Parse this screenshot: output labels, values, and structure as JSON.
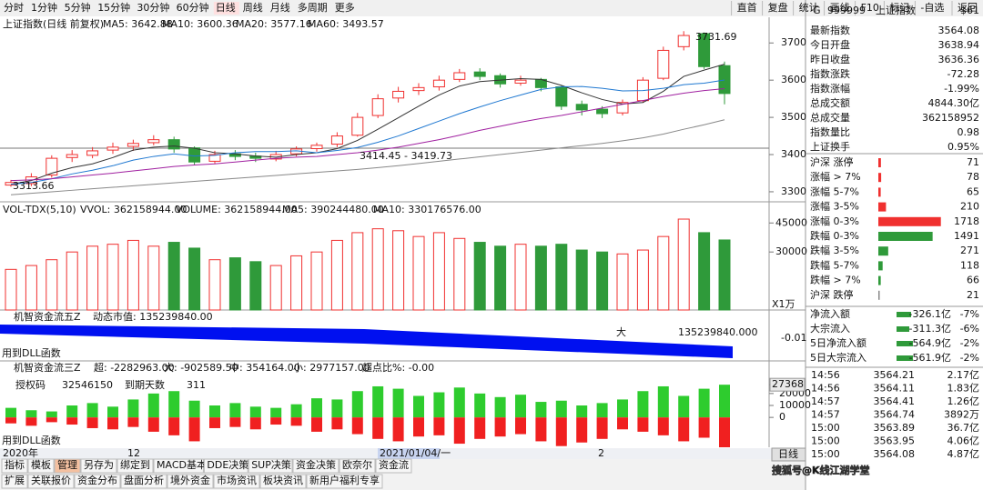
{
  "toolbar": {
    "left": [
      "分时",
      "1分钟",
      "5分钟",
      "15分钟",
      "30分钟",
      "60分钟",
      "日线",
      "周线",
      "月线",
      "多周期",
      "更多"
    ],
    "right": [
      "直首",
      "复盘",
      "统计",
      "画线",
      "F10",
      "标记",
      "-自选",
      "返回"
    ]
  },
  "chart_data": [
    {
      "type": "candlestick",
      "title": "上证指数(日线 前复权)",
      "ohlc": [
        [
          3318,
          3332,
          3313.66,
          3325
        ],
        [
          3322,
          3350,
          3315,
          3340
        ],
        [
          3345,
          3398,
          3338,
          3390
        ],
        [
          3392,
          3412,
          3380,
          3400
        ],
        [
          3398,
          3420,
          3390,
          3410
        ],
        [
          3412,
          3432,
          3402,
          3420
        ],
        [
          3422,
          3440,
          3410,
          3430
        ],
        [
          3432,
          3452,
          3425,
          3440
        ],
        [
          3440,
          3448,
          3405,
          3415
        ],
        [
          3418,
          3422,
          3372,
          3380
        ],
        [
          3382,
          3410,
          3375,
          3400
        ],
        [
          3402,
          3412,
          3385,
          3395
        ],
        [
          3396,
          3405,
          3380,
          3390
        ],
        [
          3388,
          3410,
          3382,
          3400
        ],
        [
          3402,
          3422,
          3395,
          3415
        ],
        [
          3416,
          3432,
          3408,
          3425
        ],
        [
          3428,
          3460,
          3420,
          3450
        ],
        [
          3452,
          3512,
          3448,
          3500
        ],
        [
          3505,
          3562,
          3498,
          3550
        ],
        [
          3552,
          3582,
          3540,
          3570
        ],
        [
          3572,
          3592,
          3560,
          3580
        ],
        [
          3582,
          3612,
          3572,
          3600
        ],
        [
          3602,
          3630,
          3595,
          3620
        ],
        [
          3622,
          3632,
          3600,
          3610
        ],
        [
          3612,
          3618,
          3580,
          3590
        ],
        [
          3592,
          3612,
          3585,
          3600
        ],
        [
          3602,
          3606,
          3570,
          3580
        ],
        [
          3582,
          3585,
          3520,
          3530
        ],
        [
          3535,
          3545,
          3505,
          3520
        ],
        [
          3522,
          3530,
          3498,
          3510
        ],
        [
          3512,
          3548,
          3505,
          3540
        ],
        [
          3545,
          3608,
          3540,
          3600
        ],
        [
          3605,
          3690,
          3600,
          3680
        ],
        [
          3690,
          3731.69,
          3680,
          3720
        ],
        [
          3725,
          3728,
          3630,
          3636.36
        ],
        [
          3638.94,
          3650,
          3535,
          3564.08
        ]
      ],
      "series": [
        {
          "name": "MA5: 3642.88",
          "color": "#333333",
          "values": [
            3320,
            3330,
            3350,
            3365,
            3375,
            3392,
            3412,
            3420,
            3423,
            3417,
            3405,
            3402,
            3396,
            3393,
            3400,
            3405,
            3416,
            3438,
            3468,
            3499,
            3530,
            3560,
            3584,
            3596,
            3600,
            3604,
            3602,
            3586,
            3566,
            3548,
            3536,
            3540,
            3570,
            3610,
            3627,
            3642.88
          ]
        },
        {
          "name": "MA10: 3600.36",
          "color": "#1f78d1",
          "values": [
            3320,
            3325,
            3335,
            3348,
            3358,
            3370,
            3385,
            3395,
            3402,
            3396,
            3398,
            3405,
            3408,
            3408,
            3410,
            3405,
            3411,
            3419,
            3433,
            3450,
            3470,
            3490,
            3510,
            3528,
            3545,
            3560,
            3575,
            3582,
            3583,
            3578,
            3571,
            3572,
            3578,
            3588,
            3592,
            3600.36
          ]
        },
        {
          "name": "MA20: 3577.16",
          "color": "#a020a0",
          "values": [
            3330,
            3332,
            3335,
            3340,
            3345,
            3350,
            3356,
            3362,
            3368,
            3372,
            3375,
            3380,
            3385,
            3390,
            3393,
            3395,
            3400,
            3405,
            3412,
            3420,
            3430,
            3440,
            3452,
            3465,
            3476,
            3487,
            3497,
            3505,
            3515,
            3525,
            3535,
            3545,
            3556,
            3565,
            3572,
            3577.16
          ]
        },
        {
          "name": "MA60: 3493.57",
          "color": "#888888",
          "values": [
            3292,
            3296,
            3300,
            3304,
            3308,
            3312,
            3316,
            3320,
            3324,
            3328,
            3332,
            3336,
            3340,
            3344,
            3348,
            3352,
            3356,
            3360,
            3365,
            3370,
            3376,
            3382,
            3388,
            3394,
            3400,
            3406,
            3412,
            3418,
            3424,
            3430,
            3437,
            3445,
            3455,
            3468,
            3480,
            3493.57
          ]
        }
      ],
      "ylim": [
        3273,
        3769
      ],
      "yticks": [
        3300,
        3400,
        3500,
        3600,
        3700
      ],
      "annotations": [
        "3731.69",
        "3313.66",
        "3414.45 - 3419.73"
      ]
    },
    {
      "type": "bar",
      "title": "VOL-TDX(5,10)",
      "legend": [
        "VVOL: 362158944.00",
        "VOLUME: 362158944.00",
        "MA5: 390244480.00",
        "MA10: 330176576.00"
      ],
      "values": [
        21000,
        23000,
        26000,
        30000,
        33000,
        34000,
        36000,
        33000,
        35000,
        32000,
        26000,
        27000,
        25000,
        23000,
        28000,
        30000,
        36000,
        40000,
        42000,
        41000,
        38000,
        40000,
        37000,
        35000,
        33000,
        34000,
        33000,
        34000,
        31000,
        30000,
        29000,
        31000,
        38000,
        47000,
        40000,
        36215.8944
      ],
      "ylim": [
        0,
        55000
      ],
      "yticks": [
        30000,
        45000
      ],
      "unit": "X1万"
    },
    {
      "type": "band",
      "title": "机智资金流五Z",
      "subtitle": "动态市值: 135239840.00",
      "labels": [
        "大",
        "135239840.000",
        "-0.01",
        "用到DLL函数"
      ]
    },
    {
      "type": "flow",
      "title": "机智资金流三Z",
      "legend": [
        "超: -2282963.00",
        "大: -902589.50",
        "中: 354164.00",
        "小: 2977157.00",
        "超点比%: -0.00"
      ],
      "annotations": [
        "授权码",
        "32546150",
        "到期天数",
        "311",
        "用到DLL函数"
      ],
      "series": [
        {
          "name": "流入",
          "color": "#2ecc2e",
          "values": [
            8000,
            6000,
            5000,
            10000,
            12000,
            9000,
            15000,
            20000,
            22000,
            14000,
            10000,
            12000,
            9000,
            8000,
            11000,
            16000,
            15000,
            22000,
            26000,
            24000,
            18000,
            21000,
            25000,
            20000,
            17000,
            19000,
            13000,
            14000,
            10000,
            12000,
            15000,
            22000,
            26000,
            18000,
            24000,
            27368
          ]
        },
        {
          "name": "流出",
          "color": "#f02020",
          "values": [
            -5000,
            -7000,
            -4000,
            -6000,
            -9000,
            -10000,
            -8000,
            -12000,
            -15000,
            -20000,
            -9000,
            -8000,
            -10000,
            -6000,
            -7000,
            -12000,
            -10000,
            -14000,
            -18000,
            -20000,
            -16000,
            -15000,
            -22000,
            -18000,
            -16000,
            -14000,
            -20000,
            -24000,
            -21000,
            -18000,
            -10000,
            -12000,
            -15000,
            -20000,
            -17000,
            -25000
          ]
        }
      ],
      "ylim": [
        -25000,
        45000
      ],
      "yticks": [
        0,
        10000,
        20000,
        27368
      ]
    }
  ],
  "x_labels": [
    "2020年",
    "12",
    "2021/01/04/一",
    "2"
  ],
  "period_button": "日线",
  "tabs": {
    "row1": [
      "指标",
      "模板",
      "管理",
      "另存为",
      "绑定到",
      "MACD基本",
      "DDE决策",
      "SUP决策",
      "资金决策",
      "欧奈尔",
      "资金流"
    ],
    "row2": [
      "扩展",
      "关联报价",
      "资金分布",
      "盘面分析",
      "境外资金",
      "市场资讯",
      "板块资讯",
      "新用户福利专享"
    ]
  },
  "panel": {
    "header": [
      "G",
      "999999",
      "上证指数",
      "$61"
    ],
    "quotes": [
      [
        "最新指数",
        "3564.08"
      ],
      [
        "今日开盘",
        "3638.94"
      ],
      [
        "昨日收盘",
        "3636.36"
      ],
      [
        "指数涨跌",
        "-72.28"
      ],
      [
        "指数涨幅",
        "-1.99%"
      ],
      [
        "总成交额",
        "4844.30亿"
      ],
      [
        "总成交量",
        "362158952"
      ],
      [
        "指数量比",
        "0.98"
      ],
      [
        "上证换手",
        "0.95%"
      ]
    ],
    "breadth": [
      {
        "label": "沪深 涨停",
        "value": 71
      },
      {
        "label": "涨幅 > 7%",
        "value": 78
      },
      {
        "label": "涨幅 5-7%",
        "value": 65
      },
      {
        "label": "涨幅 3-5%",
        "value": 210
      },
      {
        "label": "涨幅 0-3%",
        "value": 1718
      },
      {
        "label": "跌幅 0-3%",
        "value": 1491
      },
      {
        "label": "跌幅 3-5%",
        "value": 271
      },
      {
        "label": "跌幅 5-7%",
        "value": 118
      },
      {
        "label": "跌幅 > 7%",
        "value": 66
      },
      {
        "label": "沪深 跌停",
        "value": 21
      }
    ],
    "flows": [
      [
        "净流入额",
        "-326.1亿",
        "-7%"
      ],
      [
        "大宗流入",
        "-311.3亿",
        "-6%"
      ],
      [
        "5日净流入额",
        "-564.9亿",
        "-2%"
      ],
      [
        "5日大宗流入",
        "-561.9亿",
        "-2%"
      ]
    ],
    "ticks": [
      [
        "14:56",
        "3564.21",
        "2.17亿"
      ],
      [
        "14:56",
        "3564.11",
        "1.83亿"
      ],
      [
        "14:57",
        "3564.41",
        "1.26亿"
      ],
      [
        "14:57",
        "3564.74",
        "3892万"
      ],
      [
        "15:00",
        "3563.89",
        "36.7亿"
      ],
      [
        "15:00",
        "3563.95",
        "4.06亿"
      ],
      [
        "15:00",
        "3564.08",
        "4.87亿"
      ]
    ]
  },
  "watermark": "搜狐号@K线江湖学堂"
}
